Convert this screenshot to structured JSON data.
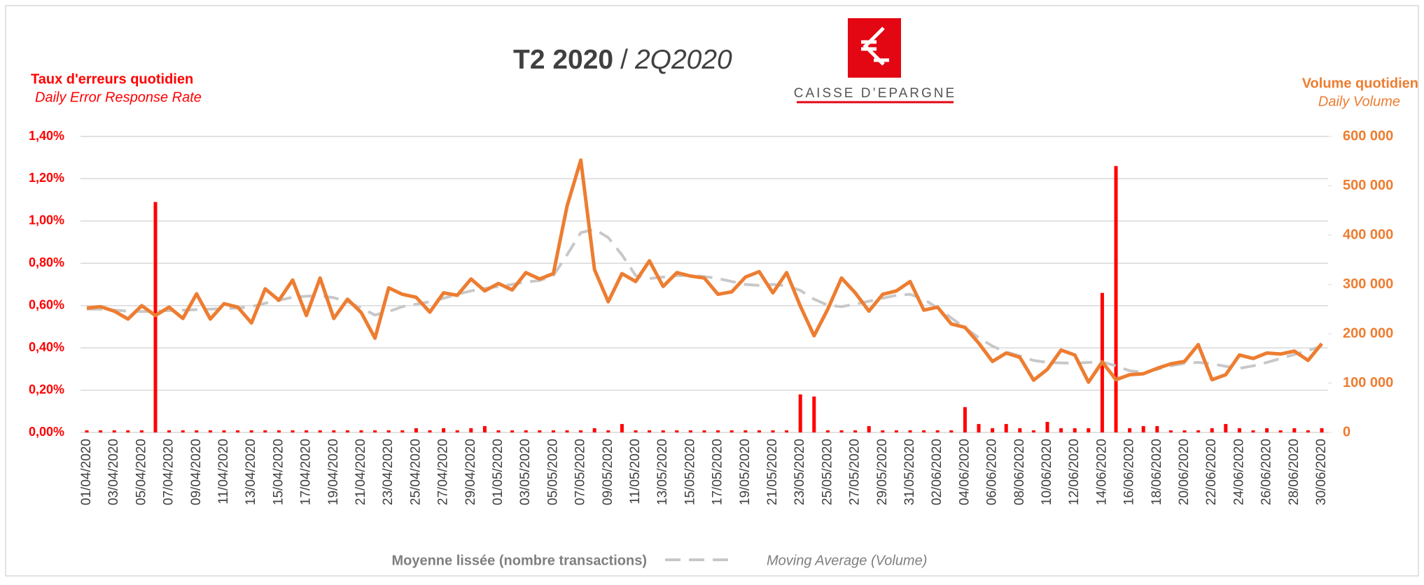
{
  "chart_data": {
    "type": "combo",
    "title": "T2 2020",
    "title_separator": "/",
    "title_alt": "2Q2020",
    "logo_text": "CAISSE D’EPARGNE",
    "y_label": "Taux d'erreurs quotidien",
    "y_label_alt": "Daily Error Response Rate",
    "y2_label": "Volume quotidien",
    "y2_label_alt": "Daily Volume",
    "legend_alt": "Moving  Average (Volume)",
    "categories": [
      "01/04/2020",
      null,
      "03/04/2020",
      null,
      "05/04/2020",
      null,
      "07/04/2020",
      null,
      "09/04/2020",
      null,
      "11/04/2020",
      null,
      "13/04/2020",
      null,
      "15/04/2020",
      null,
      "17/04/2020",
      null,
      "19/04/2020",
      null,
      "21/04/2020",
      null,
      "23/04/2020",
      null,
      "25/04/2020",
      null,
      "27/04/2020",
      null,
      "29/04/2020",
      null,
      "01/05/2020",
      null,
      "03/05/2020",
      null,
      "05/05/2020",
      null,
      "07/05/2020",
      null,
      "09/05/2020",
      null,
      "11/05/2020",
      null,
      "13/05/2020",
      null,
      "15/05/2020",
      null,
      "17/05/2020",
      null,
      "19/05/2020",
      null,
      "21/05/2020",
      null,
      "23/05/2020",
      null,
      "25/05/2020",
      null,
      "27/05/2020",
      null,
      "29/05/2020",
      null,
      "31/05/2020",
      null,
      "02/06/2020",
      null,
      "04/06/2020",
      null,
      "06/06/2020",
      null,
      "08/06/2020",
      null,
      "10/06/2020",
      null,
      "12/06/2020",
      null,
      "14/06/2020",
      null,
      "16/06/2020",
      null,
      "18/06/2020",
      null,
      "20/06/2020",
      null,
      "22/06/2020",
      null,
      "24/06/2020",
      null,
      "26/06/2020",
      null,
      "28/06/2020",
      null,
      "30/06/2020"
    ],
    "ylim": [
      0,
      1.4
    ],
    "yticks": [
      {
        "value": 0,
        "label": "0,00%"
      },
      {
        "value": 0.2,
        "label": "0,20%"
      },
      {
        "value": 0.4,
        "label": "0,40%"
      },
      {
        "value": 0.6,
        "label": "0,60%"
      },
      {
        "value": 0.8,
        "label": "0,80%"
      },
      {
        "value": 1.0,
        "label": "1,00%"
      },
      {
        "value": 1.2,
        "label": "1,20%"
      },
      {
        "value": 1.4,
        "label": "1,40%"
      }
    ],
    "y2lim": [
      0,
      600000
    ],
    "y2ticks": [
      0,
      {
        "value": 100000,
        "label": "100 000"
      },
      {
        "value": 200000,
        "label": "200 000"
      },
      {
        "value": 300000,
        "label": "300 000"
      },
      {
        "value": 400000,
        "label": "400 000"
      },
      {
        "value": 500000,
        "label": "500 000"
      },
      {
        "value": 600000,
        "label": "600 000"
      }
    ],
    "grid": true,
    "series": [
      {
        "type": "bar",
        "color": "#ff0000",
        "values": [
          0.01,
          0.01,
          0.01,
          0.01,
          0.01,
          1.09,
          0.01,
          0.01,
          0.01,
          0.01,
          0.01,
          0.01,
          0.01,
          0.01,
          0.01,
          0.01,
          0.01,
          0.01,
          0.01,
          0.01,
          0.01,
          0.01,
          0.01,
          0.01,
          0.02,
          0.01,
          0.02,
          0.01,
          0.02,
          0.03,
          0.01,
          0.01,
          0.01,
          0.01,
          0.01,
          0.01,
          0.01,
          0.02,
          0.01,
          0.04,
          0.01,
          0.01,
          0.01,
          0.01,
          0.01,
          0.01,
          0.01,
          0.01,
          0.01,
          0.01,
          0.01,
          0.01,
          0.18,
          0.17,
          0.01,
          0.01,
          0.01,
          0.03,
          0.01,
          0.01,
          0.01,
          0.01,
          0.01,
          0.01,
          0.12,
          0.04,
          0.02,
          0.04,
          0.02,
          0.01,
          0.05,
          0.02,
          0.02,
          0.02,
          0.66,
          1.26,
          0.02,
          0.03,
          0.03,
          0.01,
          0.01,
          0.01,
          0.02,
          0.04,
          0.02,
          0.01,
          0.02,
          0.01,
          0.02,
          0.01,
          0.02
        ]
      },
      {
        "type": "line",
        "axis": "y2",
        "color": "#ed7d31",
        "values": [
          252000,
          255000,
          246000,
          230000,
          257000,
          237000,
          254000,
          231000,
          281000,
          230000,
          261000,
          254000,
          222000,
          291000,
          268000,
          309000,
          237000,
          313000,
          231000,
          270000,
          243000,
          191000,
          293000,
          280000,
          274000,
          244000,
          283000,
          278000,
          311000,
          287000,
          302000,
          289000,
          324000,
          311000,
          322000,
          459000,
          552000,
          330000,
          265000,
          322000,
          306000,
          348000,
          296000,
          324000,
          317000,
          313000,
          280000,
          285000,
          315000,
          326000,
          283000,
          324000,
          256000,
          196000,
          250000,
          313000,
          283000,
          246000,
          280000,
          287000,
          306000,
          248000,
          254000,
          220000,
          213000,
          181000,
          144000,
          161000,
          152000,
          106000,
          128000,
          167000,
          157000,
          102000,
          143000,
          107000,
          117000,
          119000,
          130000,
          139000,
          144000,
          178000,
          107000,
          117000,
          157000,
          150000,
          161000,
          159000,
          165000,
          146000,
          180000
        ]
      },
      {
        "type": "line",
        "axis": "y2",
        "dash": true,
        "color": "#c8c8c8",
        "name": "Moyenne lissée (nombre transactions)",
        "values": [
          250000,
          250000,
          248000,
          246000,
          245000,
          246000,
          247000,
          248000,
          249000,
          250000,
          251000,
          252000,
          255000,
          262000,
          268000,
          274000,
          276000,
          277000,
          273000,
          265000,
          252000,
          238000,
          245000,
          255000,
          260000,
          265000,
          272000,
          280000,
          287000,
          292000,
          296000,
          300000,
          305000,
          308000,
          318000,
          360000,
          405000,
          412000,
          395000,
          360000,
          318000,
          312000,
          315000,
          318000,
          318000,
          316000,
          312000,
          306000,
          300000,
          298000,
          300000,
          297000,
          288000,
          270000,
          258000,
          255000,
          260000,
          266000,
          272000,
          278000,
          280000,
          270000,
          252000,
          232000,
          212000,
          192000,
          175000,
          163000,
          155000,
          146000,
          142000,
          141000,
          140000,
          142000,
          143000,
          135000,
          125000,
          122000,
          128000,
          135000,
          140000,
          142000,
          139000,
          134000,
          130000,
          135000,
          142000,
          150000,
          158000,
          166000,
          175000
        ]
      }
    ]
  }
}
